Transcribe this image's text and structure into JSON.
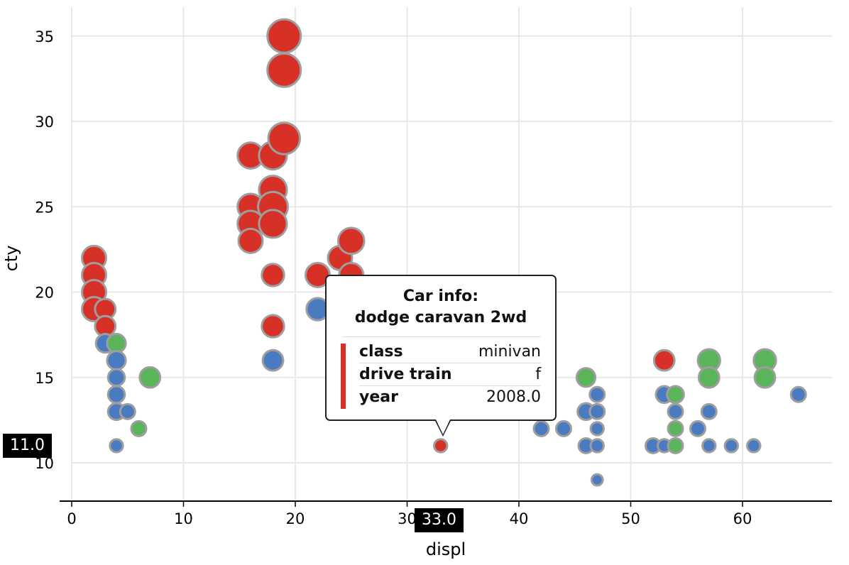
{
  "chart_data": {
    "type": "scatter",
    "xlabel": "displ",
    "ylabel": "cty",
    "xlim": [
      -1,
      68
    ],
    "ylim": [
      8,
      36.5
    ],
    "x_ticks": [
      "0",
      "10",
      "20",
      "30",
      "40",
      "50",
      "60"
    ],
    "y_ticks": [
      "10",
      "15",
      "20",
      "25",
      "30",
      "35"
    ],
    "grid": true,
    "legend": "none",
    "colors": {
      "red": "#d73027",
      "blue": "#4a7bc0",
      "green": "#5ab45a",
      "stroke": "#9e9e9e"
    },
    "points": [
      {
        "x": 2,
        "y": 22,
        "c": "red",
        "s": 10
      },
      {
        "x": 2,
        "y": 21,
        "c": "red",
        "s": 10
      },
      {
        "x": 2,
        "y": 20,
        "c": "red",
        "s": 10
      },
      {
        "x": 2,
        "y": 19,
        "c": "red",
        "s": 10
      },
      {
        "x": 3,
        "y": 19,
        "c": "red",
        "s": 8
      },
      {
        "x": 3,
        "y": 18,
        "c": "red",
        "s": 8
      },
      {
        "x": 3,
        "y": 17,
        "c": "blue",
        "s": 7
      },
      {
        "x": 4,
        "y": 17,
        "c": "green",
        "s": 7
      },
      {
        "x": 4,
        "y": 16,
        "c": "blue",
        "s": 7
      },
      {
        "x": 4,
        "y": 15,
        "c": "blue",
        "s": 6
      },
      {
        "x": 4,
        "y": 14,
        "c": "blue",
        "s": 6
      },
      {
        "x": 4,
        "y": 13,
        "c": "blue",
        "s": 6
      },
      {
        "x": 5,
        "y": 13,
        "c": "blue",
        "s": 5
      },
      {
        "x": 4,
        "y": 11,
        "c": "blue",
        "s": 4
      },
      {
        "x": 6,
        "y": 12,
        "c": "green",
        "s": 5
      },
      {
        "x": 7,
        "y": 15,
        "c": "green",
        "s": 8
      },
      {
        "x": 16,
        "y": 28,
        "c": "red",
        "s": 11
      },
      {
        "x": 16,
        "y": 25,
        "c": "red",
        "s": 11
      },
      {
        "x": 16,
        "y": 24,
        "c": "red",
        "s": 11
      },
      {
        "x": 16,
        "y": 23,
        "c": "red",
        "s": 10
      },
      {
        "x": 18,
        "y": 28,
        "c": "red",
        "s": 12
      },
      {
        "x": 18,
        "y": 26,
        "c": "red",
        "s": 12
      },
      {
        "x": 18,
        "y": 25,
        "c": "red",
        "s": 13
      },
      {
        "x": 18,
        "y": 24,
        "c": "red",
        "s": 12
      },
      {
        "x": 18,
        "y": 21,
        "c": "red",
        "s": 9
      },
      {
        "x": 18,
        "y": 18,
        "c": "red",
        "s": 9
      },
      {
        "x": 18,
        "y": 16,
        "c": "blue",
        "s": 8
      },
      {
        "x": 19,
        "y": 35,
        "c": "red",
        "s": 15
      },
      {
        "x": 19,
        "y": 33,
        "c": "red",
        "s": 15
      },
      {
        "x": 19,
        "y": 29,
        "c": "red",
        "s": 14
      },
      {
        "x": 22,
        "y": 21,
        "c": "red",
        "s": 10
      },
      {
        "x": 22,
        "y": 19,
        "c": "blue",
        "s": 9
      },
      {
        "x": 24,
        "y": 22,
        "c": "red",
        "s": 10
      },
      {
        "x": 25,
        "y": 23,
        "c": "red",
        "s": 11
      },
      {
        "x": 25,
        "y": 21,
        "c": "red",
        "s": 10
      },
      {
        "x": 33,
        "y": 11,
        "c": "red",
        "s": 4
      },
      {
        "x": 42,
        "y": 12,
        "c": "blue",
        "s": 5
      },
      {
        "x": 44,
        "y": 12,
        "c": "blue",
        "s": 5
      },
      {
        "x": 46,
        "y": 15,
        "c": "green",
        "s": 7
      },
      {
        "x": 46,
        "y": 13,
        "c": "blue",
        "s": 6
      },
      {
        "x": 46,
        "y": 11,
        "c": "blue",
        "s": 5
      },
      {
        "x": 47,
        "y": 14,
        "c": "blue",
        "s": 5
      },
      {
        "x": 47,
        "y": 13,
        "c": "blue",
        "s": 5
      },
      {
        "x": 47,
        "y": 12,
        "c": "blue",
        "s": 4
      },
      {
        "x": 47,
        "y": 11,
        "c": "blue",
        "s": 4
      },
      {
        "x": 47,
        "y": 9,
        "c": "blue",
        "s": 3
      },
      {
        "x": 52,
        "y": 11,
        "c": "blue",
        "s": 5
      },
      {
        "x": 53,
        "y": 16,
        "c": "red",
        "s": 8
      },
      {
        "x": 53,
        "y": 14,
        "c": "blue",
        "s": 6
      },
      {
        "x": 53,
        "y": 11,
        "c": "blue",
        "s": 4
      },
      {
        "x": 54,
        "y": 14,
        "c": "green",
        "s": 6
      },
      {
        "x": 54,
        "y": 13,
        "c": "blue",
        "s": 5
      },
      {
        "x": 54,
        "y": 12,
        "c": "green",
        "s": 5
      },
      {
        "x": 54,
        "y": 11,
        "c": "green",
        "s": 5
      },
      {
        "x": 56,
        "y": 12,
        "c": "blue",
        "s": 5
      },
      {
        "x": 57,
        "y": 16,
        "c": "green",
        "s": 9
      },
      {
        "x": 57,
        "y": 15,
        "c": "green",
        "s": 8
      },
      {
        "x": 57,
        "y": 13,
        "c": "blue",
        "s": 5
      },
      {
        "x": 57,
        "y": 11,
        "c": "blue",
        "s": 4
      },
      {
        "x": 59,
        "y": 11,
        "c": "blue",
        "s": 4
      },
      {
        "x": 61,
        "y": 11,
        "c": "blue",
        "s": 4
      },
      {
        "x": 62,
        "y": 16,
        "c": "green",
        "s": 9
      },
      {
        "x": 62,
        "y": 15,
        "c": "green",
        "s": 8
      },
      {
        "x": 65,
        "y": 14,
        "c": "blue",
        "s": 5
      }
    ]
  },
  "tooltip": {
    "title": "Car info:",
    "subtitle": "dodge caravan 2wd",
    "rows": [
      {
        "key": "class",
        "value": "minivan"
      },
      {
        "key": "drive train",
        "value": "f"
      },
      {
        "key": "year",
        "value": "2008.0"
      }
    ],
    "accent_color": "#d73027"
  },
  "crosshair": {
    "x_label": "33.0",
    "y_label": "11.0"
  }
}
